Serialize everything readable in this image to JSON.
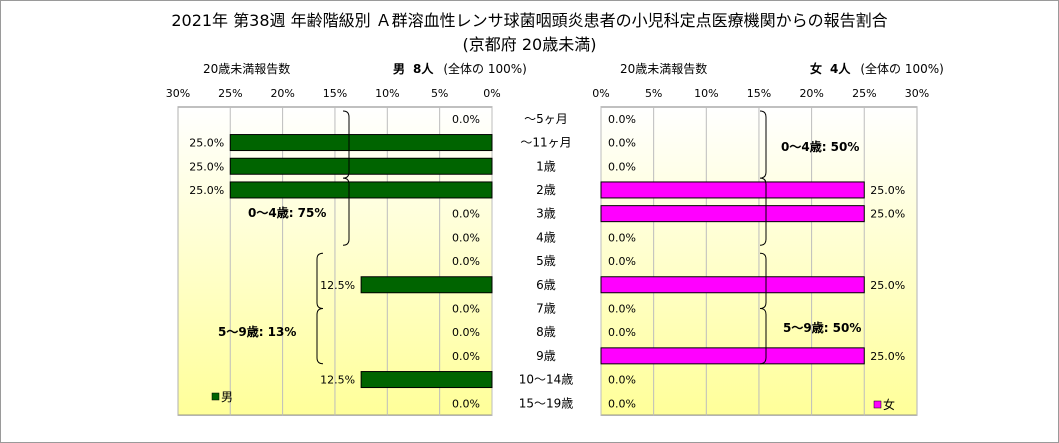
{
  "title": "2021年 第38週 年齢階級別 Ａ群溶血性レンサ球菌咽頭炎患者の小児科定点医療機関からの報告割合",
  "subtitle": "(京都府 20歳未満)",
  "colors": {
    "male": "#006400",
    "female": "#ff00ff",
    "plot_bg_top": "#ffffff",
    "plot_bg_bottom": "#ffff99"
  },
  "male_header": {
    "axis_title": "20歳未満報告数",
    "label": "男",
    "count": "8人",
    "note": "(全体の  100%)"
  },
  "female_header": {
    "axis_title": "20歳未満報告数",
    "label": "女",
    "count": "4人",
    "note": "(全体の  100%)"
  },
  "chart_data": [
    {
      "type": "bar",
      "orientation": "horizontal",
      "direction": "right-to-left",
      "series": [
        {
          "name": "男",
          "values": [
            0,
            25,
            25,
            25,
            0,
            0,
            0,
            12.5,
            0,
            0,
            0,
            12.5,
            0
          ]
        }
      ],
      "categories": [
        "～5ヶ月",
        "～11ヶ月",
        "1歳",
        "2歳",
        "3歳",
        "4歳",
        "5歳",
        "6歳",
        "7歳",
        "8歳",
        "9歳",
        "10～14歳",
        "15～19歳"
      ],
      "xlim": [
        0,
        30
      ],
      "xticks": [
        "30%",
        "25%",
        "20%",
        "15%",
        "10%",
        "5%",
        "0%"
      ],
      "data_labels": [
        "0.0%",
        "25.0%",
        "25.0%",
        "25.0%",
        "0.0%",
        "0.0%",
        "0.0%",
        "12.5%",
        "0.0%",
        "0.0%",
        "0.0%",
        "12.5%",
        "0.0%"
      ],
      "annotations": [
        "0～4歳: 75%",
        "5～9歳: 13%"
      ],
      "legend": "bottom-left",
      "grid": true
    },
    {
      "type": "bar",
      "orientation": "horizontal",
      "direction": "left-to-right",
      "series": [
        {
          "name": "女",
          "values": [
            0,
            0,
            0,
            25,
            25,
            0,
            0,
            25,
            0,
            0,
            25,
            0,
            0
          ]
        }
      ],
      "categories": [
        "～5ヶ月",
        "～11ヶ月",
        "1歳",
        "2歳",
        "3歳",
        "4歳",
        "5歳",
        "6歳",
        "7歳",
        "8歳",
        "9歳",
        "10～14歳",
        "15～19歳"
      ],
      "xlim": [
        0,
        30
      ],
      "xticks": [
        "0%",
        "5%",
        "10%",
        "15%",
        "20%",
        "25%",
        "30%"
      ],
      "data_labels": [
        "0.0%",
        "0.0%",
        "0.0%",
        "25.0%",
        "25.0%",
        "0.0%",
        "0.0%",
        "25.0%",
        "0.0%",
        "0.0%",
        "25.0%",
        "0.0%",
        "0.0%"
      ],
      "annotations": [
        "0～4歳: 50%",
        "5～9歳: 50%"
      ],
      "legend": "bottom-right",
      "grid": true
    }
  ]
}
